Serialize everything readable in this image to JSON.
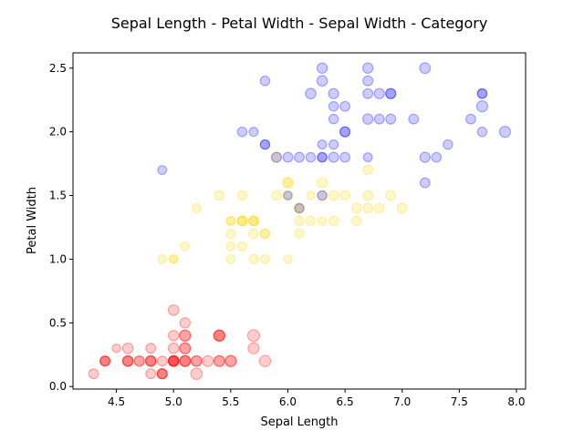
{
  "chart_data": {
    "type": "scatter",
    "title": "Sepal Length - Petal Width - Sepal Width - Category",
    "xlabel": "Sepal Length",
    "ylabel": "Petal Width",
    "xlim": [
      4.12,
      8.08
    ],
    "ylim": [
      -0.02,
      2.62
    ],
    "xticks": [
      4.5,
      5.0,
      5.5,
      6.0,
      6.5,
      7.0,
      7.5,
      8.0
    ],
    "xtick_labels": [
      "4.5",
      "5.0",
      "5.5",
      "6.0",
      "6.5",
      "7.0",
      "7.5",
      "8.0"
    ],
    "yticks": [
      0.0,
      0.5,
      1.0,
      1.5,
      2.0,
      2.5
    ],
    "ytick_labels": [
      "0.0",
      "0.5",
      "1.0",
      "1.5",
      "2.0",
      "2.5"
    ],
    "grid": false,
    "legend": "none",
    "size_encoding": "Sepal Width",
    "series": [
      {
        "color": "#ff0000",
        "points": [
          [
            5.1,
            0.2,
            3.5
          ],
          [
            4.9,
            0.2,
            3.0
          ],
          [
            4.7,
            0.2,
            3.2
          ],
          [
            4.6,
            0.2,
            3.1
          ],
          [
            5.0,
            0.2,
            3.6
          ],
          [
            5.4,
            0.4,
            3.9
          ],
          [
            4.6,
            0.3,
            3.4
          ],
          [
            5.0,
            0.2,
            3.4
          ],
          [
            4.4,
            0.2,
            2.9
          ],
          [
            4.9,
            0.1,
            3.1
          ],
          [
            5.4,
            0.2,
            3.7
          ],
          [
            4.8,
            0.2,
            3.4
          ],
          [
            4.8,
            0.1,
            3.0
          ],
          [
            4.3,
            0.1,
            3.0
          ],
          [
            5.8,
            0.2,
            4.0
          ],
          [
            5.7,
            0.4,
            4.4
          ],
          [
            5.4,
            0.4,
            3.9
          ],
          [
            5.1,
            0.3,
            3.5
          ],
          [
            5.7,
            0.3,
            3.8
          ],
          [
            5.1,
            0.3,
            3.8
          ],
          [
            5.4,
            0.2,
            3.4
          ],
          [
            5.1,
            0.4,
            3.7
          ],
          [
            4.6,
            0.2,
            3.6
          ],
          [
            5.1,
            0.5,
            3.3
          ],
          [
            4.8,
            0.2,
            3.4
          ],
          [
            5.0,
            0.2,
            3.0
          ],
          [
            5.0,
            0.4,
            3.4
          ],
          [
            5.2,
            0.2,
            3.5
          ],
          [
            5.2,
            0.2,
            3.4
          ],
          [
            4.7,
            0.2,
            3.2
          ],
          [
            4.8,
            0.2,
            3.1
          ],
          [
            5.4,
            0.4,
            3.4
          ],
          [
            5.2,
            0.1,
            4.1
          ],
          [
            5.5,
            0.2,
            4.2
          ],
          [
            4.9,
            0.1,
            3.1
          ],
          [
            5.0,
            0.2,
            3.2
          ],
          [
            5.5,
            0.2,
            3.5
          ],
          [
            4.9,
            0.1,
            3.1
          ],
          [
            4.4,
            0.2,
            3.0
          ],
          [
            5.1,
            0.2,
            3.4
          ],
          [
            5.0,
            0.3,
            3.5
          ],
          [
            4.5,
            0.3,
            2.3
          ],
          [
            4.4,
            0.2,
            3.2
          ],
          [
            5.0,
            0.6,
            3.5
          ],
          [
            5.1,
            0.4,
            3.8
          ],
          [
            4.8,
            0.3,
            3.0
          ],
          [
            5.1,
            0.2,
            3.8
          ],
          [
            4.6,
            0.2,
            3.2
          ],
          [
            5.3,
            0.2,
            3.7
          ],
          [
            5.0,
            0.2,
            3.3
          ]
        ]
      },
      {
        "color": "#ffd700",
        "points": [
          [
            7.0,
            1.4,
            3.2
          ],
          [
            6.4,
            1.5,
            3.2
          ],
          [
            6.9,
            1.5,
            3.1
          ],
          [
            5.5,
            1.3,
            2.3
          ],
          [
            6.5,
            1.5,
            2.8
          ],
          [
            5.7,
            1.3,
            2.8
          ],
          [
            6.3,
            1.6,
            3.3
          ],
          [
            4.9,
            1.0,
            2.4
          ],
          [
            6.6,
            1.3,
            2.9
          ],
          [
            5.2,
            1.4,
            2.7
          ],
          [
            5.0,
            1.0,
            2.0
          ],
          [
            5.9,
            1.5,
            3.0
          ],
          [
            6.0,
            1.0,
            2.2
          ],
          [
            6.1,
            1.4,
            2.9
          ],
          [
            5.6,
            1.3,
            2.9
          ],
          [
            6.7,
            1.4,
            3.1
          ],
          [
            5.6,
            1.5,
            3.0
          ],
          [
            5.8,
            1.0,
            2.7
          ],
          [
            6.2,
            1.5,
            2.2
          ],
          [
            5.6,
            1.1,
            2.5
          ],
          [
            5.9,
            1.8,
            3.2
          ],
          [
            6.1,
            1.3,
            2.8
          ],
          [
            6.3,
            1.5,
            2.5
          ],
          [
            6.1,
            1.2,
            2.8
          ],
          [
            6.4,
            1.3,
            2.9
          ],
          [
            6.6,
            1.4,
            3.0
          ],
          [
            6.8,
            1.4,
            2.8
          ],
          [
            6.7,
            1.7,
            3.0
          ],
          [
            6.0,
            1.5,
            2.9
          ],
          [
            5.7,
            1.0,
            2.6
          ],
          [
            5.5,
            1.1,
            2.4
          ],
          [
            5.5,
            1.0,
            2.4
          ],
          [
            5.8,
            1.2,
            2.7
          ],
          [
            6.0,
            1.6,
            2.7
          ],
          [
            5.4,
            1.5,
            3.0
          ],
          [
            6.0,
            1.6,
            3.4
          ],
          [
            6.7,
            1.5,
            3.1
          ],
          [
            6.3,
            1.3,
            2.3
          ],
          [
            5.6,
            1.3,
            3.0
          ],
          [
            5.5,
            1.3,
            2.5
          ],
          [
            5.5,
            1.2,
            2.6
          ],
          [
            6.1,
            1.4,
            3.0
          ],
          [
            5.8,
            1.2,
            2.6
          ],
          [
            5.0,
            1.0,
            2.3
          ],
          [
            5.6,
            1.3,
            2.7
          ],
          [
            5.7,
            1.2,
            3.0
          ],
          [
            5.7,
            1.3,
            2.9
          ],
          [
            6.2,
            1.3,
            2.9
          ],
          [
            5.1,
            1.1,
            2.5
          ],
          [
            5.7,
            1.3,
            2.8
          ]
        ]
      },
      {
        "color": "#0000ff",
        "points": [
          [
            6.3,
            2.5,
            3.3
          ],
          [
            5.8,
            1.9,
            2.7
          ],
          [
            7.1,
            2.1,
            3.0
          ],
          [
            6.3,
            1.8,
            2.9
          ],
          [
            6.5,
            2.2,
            3.0
          ],
          [
            7.6,
            2.1,
            3.0
          ],
          [
            4.9,
            1.7,
            2.5
          ],
          [
            7.3,
            1.8,
            2.9
          ],
          [
            6.7,
            1.8,
            2.5
          ],
          [
            7.2,
            2.5,
            3.6
          ],
          [
            6.5,
            2.0,
            3.2
          ],
          [
            6.4,
            1.9,
            2.7
          ],
          [
            6.8,
            2.1,
            3.0
          ],
          [
            5.7,
            2.0,
            2.5
          ],
          [
            5.8,
            2.4,
            2.8
          ],
          [
            6.4,
            2.3,
            3.2
          ],
          [
            6.5,
            1.8,
            3.0
          ],
          [
            7.7,
            2.2,
            3.8
          ],
          [
            7.7,
            2.3,
            2.6
          ],
          [
            6.0,
            1.5,
            2.2
          ],
          [
            6.9,
            2.3,
            3.2
          ],
          [
            5.6,
            2.0,
            2.8
          ],
          [
            7.7,
            2.0,
            2.8
          ],
          [
            6.3,
            1.8,
            2.7
          ],
          [
            6.7,
            2.1,
            3.3
          ],
          [
            7.2,
            1.8,
            3.2
          ],
          [
            6.2,
            1.8,
            2.8
          ],
          [
            6.1,
            1.8,
            3.0
          ],
          [
            6.4,
            2.1,
            2.8
          ],
          [
            7.2,
            1.6,
            3.0
          ],
          [
            7.4,
            1.9,
            2.8
          ],
          [
            7.9,
            2.0,
            3.8
          ],
          [
            6.4,
            2.2,
            2.8
          ],
          [
            6.3,
            1.5,
            2.8
          ],
          [
            6.1,
            1.4,
            2.6
          ],
          [
            7.7,
            2.3,
            3.0
          ],
          [
            6.3,
            2.4,
            3.4
          ],
          [
            6.4,
            1.8,
            3.1
          ],
          [
            6.0,
            1.8,
            3.0
          ],
          [
            6.9,
            2.1,
            3.1
          ],
          [
            6.7,
            2.4,
            3.1
          ],
          [
            6.9,
            2.3,
            3.1
          ],
          [
            5.8,
            1.9,
            2.7
          ],
          [
            6.8,
            2.3,
            3.2
          ],
          [
            6.7,
            2.5,
            3.3
          ],
          [
            6.7,
            2.3,
            3.0
          ],
          [
            6.3,
            1.9,
            2.5
          ],
          [
            6.5,
            2.0,
            3.0
          ],
          [
            6.2,
            2.3,
            3.4
          ],
          [
            5.9,
            1.8,
            3.0
          ]
        ]
      }
    ]
  }
}
